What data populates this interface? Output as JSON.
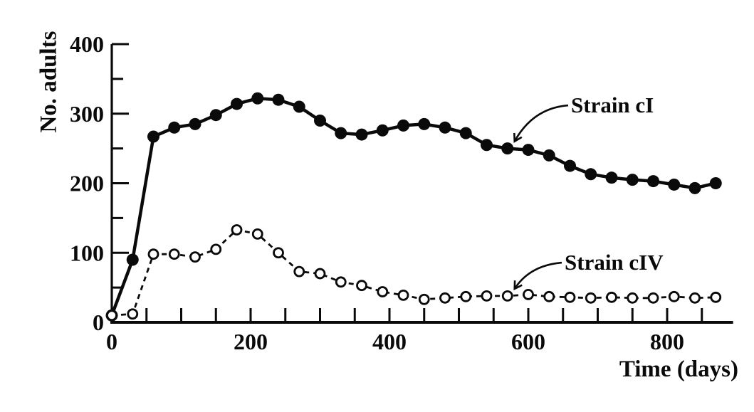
{
  "figure": {
    "background": "#ffffff",
    "ink_color": "#0a0a0a"
  },
  "chart_data": {
    "type": "line",
    "title": "",
    "xlabel": "Time (days)",
    "ylabel": "No. adults",
    "xlim": [
      0,
      895
    ],
    "ylim": [
      0,
      400
    ],
    "grid": false,
    "x_major_ticks": [
      0,
      200,
      400,
      600,
      800
    ],
    "x_minor_tick_step": 50,
    "y_major_ticks": [
      0,
      100,
      200,
      300,
      400
    ],
    "y_minor_tick_step": 50,
    "x": [
      0,
      30,
      60,
      90,
      120,
      150,
      180,
      210,
      240,
      270,
      300,
      330,
      360,
      390,
      420,
      450,
      480,
      510,
      540,
      570,
      600,
      630,
      660,
      690,
      720,
      750,
      780,
      810,
      840,
      870
    ],
    "series": [
      {
        "name": "Strain cI",
        "line_style": "solid",
        "marker": "filled-circle",
        "values": [
          10,
          90,
          267,
          280,
          285,
          298,
          314,
          322,
          320,
          310,
          290,
          272,
          270,
          276,
          283,
          285,
          280,
          272,
          255,
          250,
          248,
          240,
          225,
          213,
          208,
          205,
          203,
          198,
          193,
          200
        ]
      },
      {
        "name": "Strain cIV",
        "line_style": "dashed",
        "marker": "open-circle",
        "values": [
          10,
          12,
          98,
          98,
          94,
          105,
          133,
          127,
          100,
          73,
          70,
          58,
          53,
          44,
          39,
          33,
          35,
          37,
          38,
          38,
          40,
          37,
          36,
          35,
          36,
          35,
          35,
          37,
          35,
          36
        ]
      }
    ],
    "annotations": [
      {
        "text": "Strain cI",
        "series": "Strain cI",
        "target_day": 570,
        "target_value": 250
      },
      {
        "text": "Strain cIV",
        "series": "Strain cIV",
        "target_day": 570,
        "target_value": 38
      }
    ]
  }
}
